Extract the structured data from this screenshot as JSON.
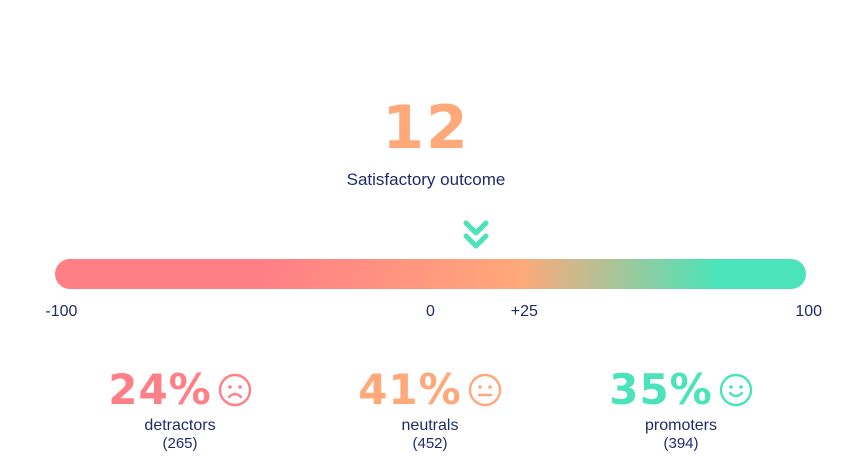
{
  "nps": {
    "score": "12",
    "score_value": 12,
    "outcome_label": "Satisfactory outcome",
    "scale": {
      "min": -100,
      "max": 100,
      "ticks": [
        {
          "label": "-100",
          "value": -100
        },
        {
          "label": "0",
          "value": 0
        },
        {
          "label": "+25",
          "value": 25
        },
        {
          "label": "100",
          "value": 100
        }
      ]
    },
    "colors": {
      "detractor": "#ff7f86",
      "neutral": "#ffa87a",
      "promoter": "#4be3b9",
      "text": "#1f2a6b"
    },
    "groups": [
      {
        "key": "detractors",
        "percent": "24%",
        "label": "detractors",
        "count": "(265)",
        "icon": "frown-face-icon"
      },
      {
        "key": "neutrals",
        "percent": "41%",
        "label": "neutrals",
        "count": "(452)",
        "icon": "neutral-face-icon"
      },
      {
        "key": "promoters",
        "percent": "35%",
        "label": "promoters",
        "count": "(394)",
        "icon": "smile-face-icon"
      }
    ]
  }
}
